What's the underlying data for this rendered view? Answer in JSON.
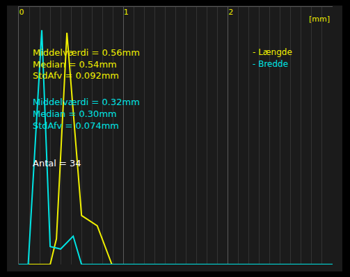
{
  "chart_data": {
    "type": "line",
    "xlabel": "[mm]",
    "xlim": [
      0,
      3
    ],
    "xticks": [
      0,
      1,
      2
    ],
    "ylim": [
      0,
      1
    ],
    "tick_labels": "x",
    "grid": true,
    "series": [
      {
        "name": "- Længde",
        "color": "#f0f000",
        "x": [
          0,
          0.3,
          0.36,
          0.46,
          0.6,
          0.75,
          0.89,
          3.0
        ],
        "values": [
          0,
          0,
          0.1,
          0.9,
          0.19,
          0.15,
          0,
          0
        ]
      },
      {
        "name": "- Bredde",
        "color": "#00e5e5",
        "x": [
          0,
          0.09,
          0.22,
          0.3,
          0.4,
          0.52,
          0.6,
          3.0
        ],
        "values": [
          0,
          0,
          0.91,
          0.07,
          0.06,
          0.11,
          0,
          0
        ]
      }
    ],
    "annotations": [
      {
        "text": "Middelværdi = 0.56mm",
        "color": "#f0f000"
      },
      {
        "text": "Median = 0.54mm",
        "color": "#f0f000"
      },
      {
        "text": "StdAfv = 0.092mm",
        "color": "#f0f000"
      },
      {
        "text": "Middelværdi = 0.32mm",
        "color": "#00e5e5"
      },
      {
        "text": "Median = 0.30mm",
        "color": "#00e5e5"
      },
      {
        "text": "StdAfv = 0.074mm",
        "color": "#00e5e5"
      },
      {
        "text": "Antal = 34",
        "color": "#ffffff"
      }
    ]
  }
}
